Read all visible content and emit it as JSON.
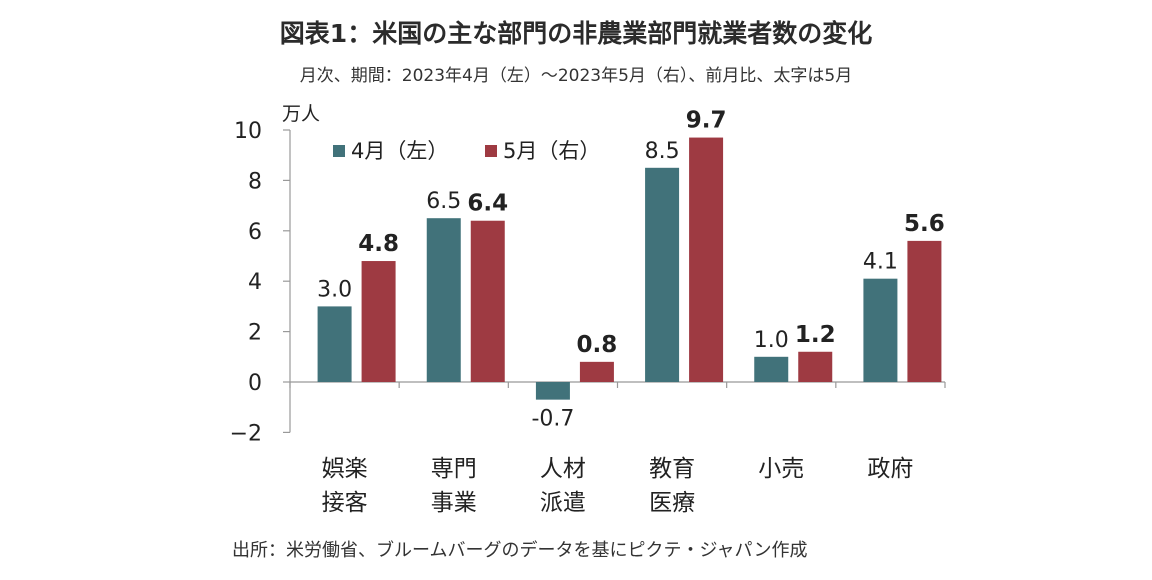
{
  "chart_data": {
    "type": "bar",
    "title": "図表1：米国の主な部門の非農業部門就業者数の変化",
    "subtitle": "月次、期間：2023年4月（左）～2023年5月（右）、前月比、太字は5月",
    "unit_label": "万人",
    "categories": [
      [
        "娯楽",
        "接客"
      ],
      [
        "専門",
        "事業"
      ],
      [
        "人材",
        "派遣"
      ],
      [
        "教育",
        "医療"
      ],
      [
        "小売"
      ],
      [
        "政府"
      ]
    ],
    "series": [
      {
        "name": "4月（左）",
        "color": "#41727a",
        "values": [
          3.0,
          6.5,
          -0.7,
          8.5,
          1.0,
          4.1
        ],
        "labels": [
          "3.0",
          "6.5",
          "-0.7",
          "8.5",
          "1.0",
          "4.1"
        ],
        "bold_labels": false
      },
      {
        "name": "5月（右）",
        "color": "#9e3a42",
        "values": [
          4.8,
          6.4,
          0.8,
          9.7,
          1.2,
          5.6
        ],
        "labels": [
          "4.8",
          "6.4",
          "0.8",
          "9.7",
          "1.2",
          "5.6"
        ],
        "bold_labels": true
      }
    ],
    "y_ticks": [
      "10",
      "8",
      "6",
      "4",
      "2",
      "0",
      "−2"
    ],
    "y_tick_values": [
      10,
      8,
      6,
      4,
      2,
      0,
      -2
    ],
    "ylim": [
      -2,
      10
    ],
    "grid": false,
    "legend_position": "top-left",
    "source": "出所：米労働省、ブルームバーグのデータを基にピクテ・ジャパン作成"
  }
}
